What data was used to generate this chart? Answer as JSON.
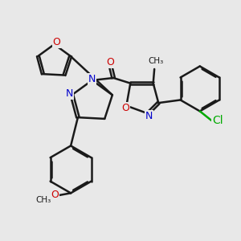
{
  "background_color": "#e8e8e8",
  "bond_color": "#1a1a1a",
  "N_color": "#0000cc",
  "O_color": "#cc0000",
  "Cl_color": "#00aa00",
  "bond_width": 1.8,
  "font_size": 9,
  "figsize": [
    3.0,
    3.0
  ],
  "dpi": 100,
  "xlim": [
    0,
    10
  ],
  "ylim": [
    0,
    10
  ]
}
